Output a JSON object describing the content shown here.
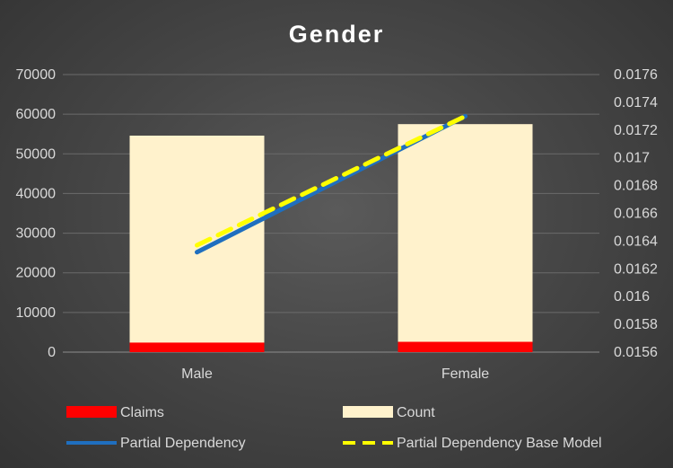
{
  "chart_data": {
    "type": "bar",
    "title": "Gender",
    "categories": [
      "Male",
      "Female"
    ],
    "series": [
      {
        "name": "Claims",
        "kind": "bar",
        "axis": "left",
        "color": "#ff0000",
        "values": [
          2400,
          2600
        ]
      },
      {
        "name": "Count",
        "kind": "bar",
        "axis": "left",
        "color": "#fff2cc",
        "values": [
          54600,
          57500
        ]
      },
      {
        "name": "Partial Dependency",
        "kind": "line",
        "axis": "right",
        "color": "#1f6fbf",
        "values": [
          0.01632,
          0.0173
        ]
      },
      {
        "name": "Partial Dependency Base Model",
        "kind": "line",
        "axis": "right",
        "style": "dashed",
        "color": "#ffff00",
        "values": [
          0.01637,
          0.0173
        ]
      }
    ],
    "stacked": true,
    "ylim": [
      0,
      70000
    ],
    "yticks": [
      "0",
      "10000",
      "20000",
      "30000",
      "40000",
      "50000",
      "60000",
      "70000"
    ],
    "y2lim": [
      0.0156,
      0.0176
    ],
    "y2ticks": [
      "0.0156",
      "0.0158",
      "0.016",
      "0.0162",
      "0.0164",
      "0.0166",
      "0.0168",
      "0.017",
      "0.0172",
      "0.0174",
      "0.0176"
    ],
    "grid": true,
    "legend": "bottom"
  }
}
